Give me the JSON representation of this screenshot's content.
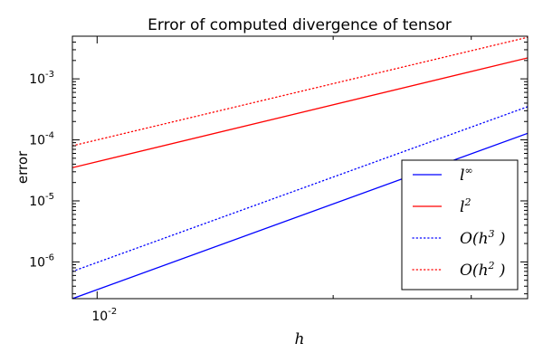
{
  "chart_data": {
    "type": "line",
    "title": "Error of computed divergence of tensor",
    "xlabel": "h",
    "ylabel": "error",
    "xscale": "log",
    "yscale": "log",
    "xlim": [
      0.0093,
      0.0354
    ],
    "ylim": [
      2.5e-07,
      0.005
    ],
    "x_ticks": [
      {
        "value": 0.01,
        "base": "10",
        "exp": "-2"
      }
    ],
    "y_ticks": [
      {
        "value": 1e-06,
        "base": "10",
        "exp": "-6"
      },
      {
        "value": 1e-05,
        "base": "10",
        "exp": "-5"
      },
      {
        "value": 0.0001,
        "base": "10",
        "exp": "-4"
      },
      {
        "value": 0.001,
        "base": "10",
        "exp": "-3"
      }
    ],
    "grid": false,
    "legend_position": "lower-right",
    "series": [
      {
        "name": "l^∞",
        "name_base": "l",
        "name_sup": "∞",
        "color": "#0000ff",
        "style": "solid",
        "x": [
          0.0093,
          0.0354
        ],
        "y": [
          2.5e-07,
          0.000128
        ]
      },
      {
        "name": "l^2",
        "name_base": "l",
        "name_sup": "2",
        "color": "#ff0000",
        "style": "solid",
        "x": [
          0.0093,
          0.0354
        ],
        "y": [
          3.5e-05,
          0.0022
        ]
      },
      {
        "name": "O(h^3 )",
        "name_prefix": "O(h",
        "name_sup": "3",
        "name_suffix": " )",
        "color": "#0000ff",
        "style": "dotted",
        "x": [
          0.0093,
          0.0354
        ],
        "y": [
          7e-07,
          0.00035
        ]
      },
      {
        "name": "O(h^2 )",
        "name_prefix": "O(h",
        "name_sup": "2",
        "name_suffix": " )",
        "color": "#ff0000",
        "style": "dotted",
        "x": [
          0.0093,
          0.0354
        ],
        "y": [
          8e-05,
          0.0048
        ]
      }
    ]
  }
}
